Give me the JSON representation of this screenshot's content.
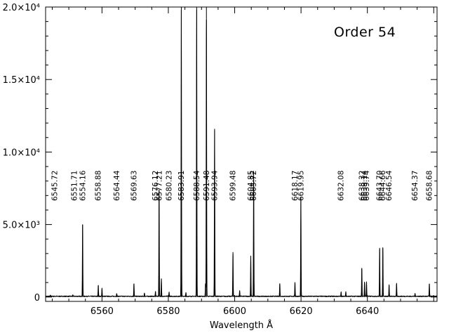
{
  "chart_data": {
    "type": "line",
    "title": "",
    "annotation": "Order 54",
    "xlabel": "Wavelength Å",
    "ylabel": "",
    "xlim": [
      6543,
      6661
    ],
    "ylim": [
      -300,
      20000
    ],
    "x_ticks": [
      {
        "value": 6560,
        "label": "6560"
      },
      {
        "value": 6580,
        "label": "6580"
      },
      {
        "value": 6600,
        "label": "6600"
      },
      {
        "value": 6620,
        "label": "6620"
      },
      {
        "value": 6640,
        "label": "6640"
      }
    ],
    "y_ticks": [
      {
        "value": 0,
        "label": "0"
      },
      {
        "value": 5000,
        "label": "5.0×10³"
      },
      {
        "value": 10000,
        "label": "1.0×10⁴"
      },
      {
        "value": 15000,
        "label": "1.5×10⁴"
      },
      {
        "value": 20000,
        "label": "2.0×10⁴"
      }
    ],
    "line_labels": [
      "6545.72",
      "6551.71",
      "6554.16",
      "6558.88",
      "6564.44",
      "6569.63",
      "6576.12",
      "6577.21",
      "6580.23",
      "6583.91",
      "6588.54",
      "6591.48",
      "6593.94",
      "6599.48",
      "6604.85",
      "6605.72",
      "6618.17",
      "6619.95",
      "6632.08",
      "6638.32",
      "6639.14",
      "6639.74",
      "6643.70",
      "6644.66",
      "6646.54",
      "6654.37",
      "6658.68"
    ],
    "series": [
      {
        "values": [
          {
            "x": 6544.5,
            "y": 80
          },
          {
            "x": 6551.2,
            "y": 120
          },
          {
            "x": 6554.16,
            "y": 5000
          },
          {
            "x": 6558.88,
            "y": 800
          },
          {
            "x": 6560.0,
            "y": 550
          },
          {
            "x": 6564.44,
            "y": 200
          },
          {
            "x": 6569.63,
            "y": 900
          },
          {
            "x": 6572.8,
            "y": 250
          },
          {
            "x": 6576.12,
            "y": 350
          },
          {
            "x": 6577.21,
            "y": 7400
          },
          {
            "x": 6577.9,
            "y": 1200
          },
          {
            "x": 6580.23,
            "y": 300
          },
          {
            "x": 6583.91,
            "y": 20000
          },
          {
            "x": 6585.3,
            "y": 250
          },
          {
            "x": 6588.54,
            "y": 20000
          },
          {
            "x": 6591.48,
            "y": 20000
          },
          {
            "x": 6591.2,
            "y": 900
          },
          {
            "x": 6593.94,
            "y": 11600
          },
          {
            "x": 6599.48,
            "y": 3100
          },
          {
            "x": 6601.5,
            "y": 400
          },
          {
            "x": 6604.85,
            "y": 2800
          },
          {
            "x": 6605.72,
            "y": 8700
          },
          {
            "x": 6613.6,
            "y": 900
          },
          {
            "x": 6618.17,
            "y": 1000
          },
          {
            "x": 6619.95,
            "y": 6800
          },
          {
            "x": 6632.08,
            "y": 300
          },
          {
            "x": 6633.5,
            "y": 350
          },
          {
            "x": 6638.32,
            "y": 2000
          },
          {
            "x": 6639.14,
            "y": 1000
          },
          {
            "x": 6639.74,
            "y": 1000
          },
          {
            "x": 6643.7,
            "y": 3300
          },
          {
            "x": 6644.66,
            "y": 3400
          },
          {
            "x": 6646.54,
            "y": 800
          },
          {
            "x": 6648.8,
            "y": 900
          },
          {
            "x": 6654.37,
            "y": 200
          },
          {
            "x": 6658.68,
            "y": 900
          }
        ]
      }
    ]
  }
}
